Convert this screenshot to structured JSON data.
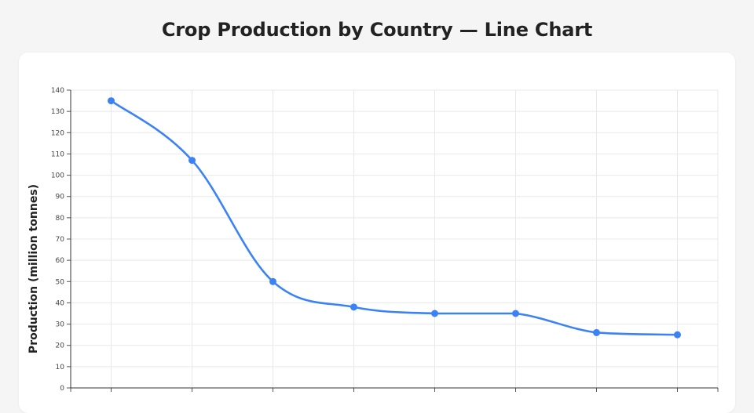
{
  "page": {
    "title": "Crop Production by Country — Line Chart"
  },
  "chart_data": {
    "type": "line",
    "title": "Crop Production by Country — Line Chart",
    "xlabel": "",
    "ylabel": "Production (million tonnes)",
    "ylim": [
      0,
      140
    ],
    "y_ticks": [
      "0",
      "10",
      "20",
      "30",
      "40",
      "50",
      "60",
      "70",
      "80",
      "90",
      "100",
      "110",
      "120",
      "130",
      "140"
    ],
    "grid": true,
    "legend": "none",
    "line_color": "#3b82f6",
    "series": [
      {
        "values": [
          135,
          107,
          50,
          38,
          35,
          35,
          26,
          25
        ]
      }
    ]
  }
}
